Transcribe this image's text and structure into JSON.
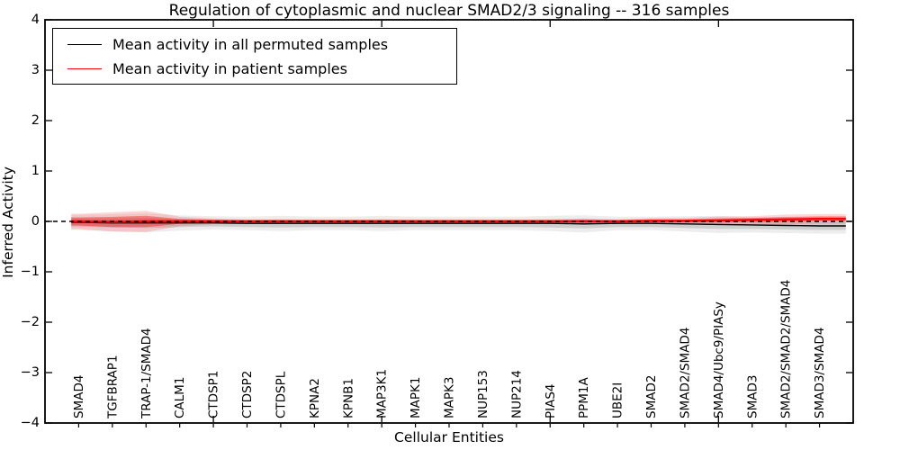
{
  "figure": {
    "background": "#ffffff",
    "frame_color": "#000000"
  },
  "chart_data": {
    "type": "line",
    "title": "Regulation of cytoplasmic and nuclear SMAD2/3 signaling -- 316 samples",
    "xlabel": "Cellular Entities",
    "ylabel": "Inferred Activity",
    "ylim": [
      -4,
      4
    ],
    "xlim": [
      0,
      24
    ],
    "yticks": [
      -4,
      -3,
      -2,
      -1,
      0,
      1,
      2,
      3,
      4
    ],
    "x_major_ticks": [
      5,
      10,
      15,
      20
    ],
    "grid": false,
    "legend_position": "upper-left",
    "zero_line": {
      "y": 0,
      "style": "dashed",
      "color": "#000000"
    },
    "categories": [
      "SMAD4",
      "TGFBRAP1",
      "TRAP-1/SMAD4",
      "CALM1",
      "CTDSP1",
      "CTDSP2",
      "CTDSPL",
      "KPNA2",
      "KPNB1",
      "MAP3K1",
      "MAPK1",
      "MAPK3",
      "NUP153",
      "NUP214",
      "PIAS4",
      "PPM1A",
      "UBE2I",
      "SMAD2",
      "SMAD2/SMAD4",
      "SMAD4/Ubc9/PIASy",
      "SMAD3",
      "SMAD2/SMAD2/SMAD4",
      "SMAD3/SMAD4"
    ],
    "series": [
      {
        "name": "Mean activity in all permuted samples",
        "color": "#000000",
        "line_style": "solid",
        "values": [
          -0.02,
          -0.03,
          -0.03,
          -0.03,
          -0.03,
          -0.04,
          -0.04,
          -0.04,
          -0.04,
          -0.04,
          -0.04,
          -0.04,
          -0.04,
          -0.04,
          -0.04,
          -0.05,
          -0.04,
          -0.04,
          -0.05,
          -0.06,
          -0.07,
          -0.08,
          -0.09
        ],
        "band_std": [
          0.08,
          0.09,
          0.1,
          0.08,
          0.07,
          0.07,
          0.08,
          0.07,
          0.07,
          0.08,
          0.07,
          0.07,
          0.07,
          0.07,
          0.08,
          0.09,
          0.07,
          0.07,
          0.08,
          0.09,
          0.08,
          0.08,
          0.08
        ],
        "band_color": "#888888"
      },
      {
        "name": "Mean activity in patient samples",
        "color": "#ff0000",
        "line_style": "solid",
        "values": [
          0.0,
          -0.01,
          0.0,
          0.0,
          0.0,
          0.0,
          0.0,
          0.0,
          0.0,
          0.0,
          0.0,
          0.0,
          0.0,
          0.0,
          0.0,
          0.0,
          0.0,
          0.01,
          0.01,
          0.02,
          0.03,
          0.04,
          0.05
        ],
        "band_std": [
          0.08,
          0.1,
          0.11,
          0.05,
          0.03,
          0.02,
          0.02,
          0.02,
          0.02,
          0.02,
          0.02,
          0.02,
          0.02,
          0.02,
          0.02,
          0.03,
          0.02,
          0.03,
          0.03,
          0.04,
          0.04,
          0.05,
          0.05
        ],
        "band_color": "#ff0000"
      }
    ]
  }
}
